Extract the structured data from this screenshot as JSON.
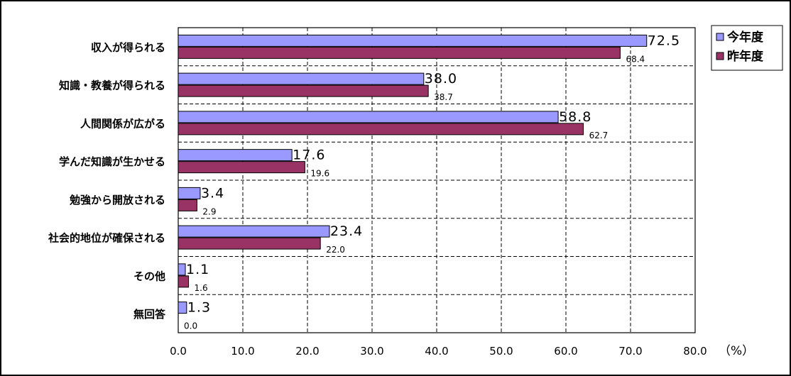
{
  "chart_data": {
    "type": "bar",
    "orientation": "horizontal",
    "categories": [
      "収入が得られる",
      "知識・教養が得られる",
      "人間関係が広がる",
      "学んだ知識が生かせる",
      "勉強から開放される",
      "社会的地位が確保される",
      "その他",
      "無回答"
    ],
    "series": [
      {
        "name": "今年度",
        "color": "#9999ff",
        "values": [
          72.5,
          38.0,
          58.8,
          17.6,
          3.4,
          23.4,
          1.1,
          1.3
        ],
        "labels": [
          "72.5",
          "38.0",
          "58.8",
          "17.6",
          "3.4",
          "23.4",
          "1.1",
          "1.3"
        ]
      },
      {
        "name": "昨年度",
        "color": "#993366",
        "values": [
          68.4,
          38.7,
          62.7,
          19.6,
          2.9,
          22.0,
          1.6,
          0.0
        ],
        "labels": [
          "68.4",
          "38.7",
          "62.7",
          "19.6",
          "2.9",
          "22.0",
          "1.6",
          "0.0"
        ]
      }
    ],
    "xlim": [
      0,
      80
    ],
    "xticks": [
      "0.0",
      "10.0",
      "20.0",
      "30.0",
      "40.0",
      "50.0",
      "60.0",
      "70.0",
      "80.0"
    ],
    "unit_label": "（%）",
    "grid": true,
    "legend_position": "top-right",
    "title": "",
    "xlabel": "",
    "ylabel": ""
  }
}
